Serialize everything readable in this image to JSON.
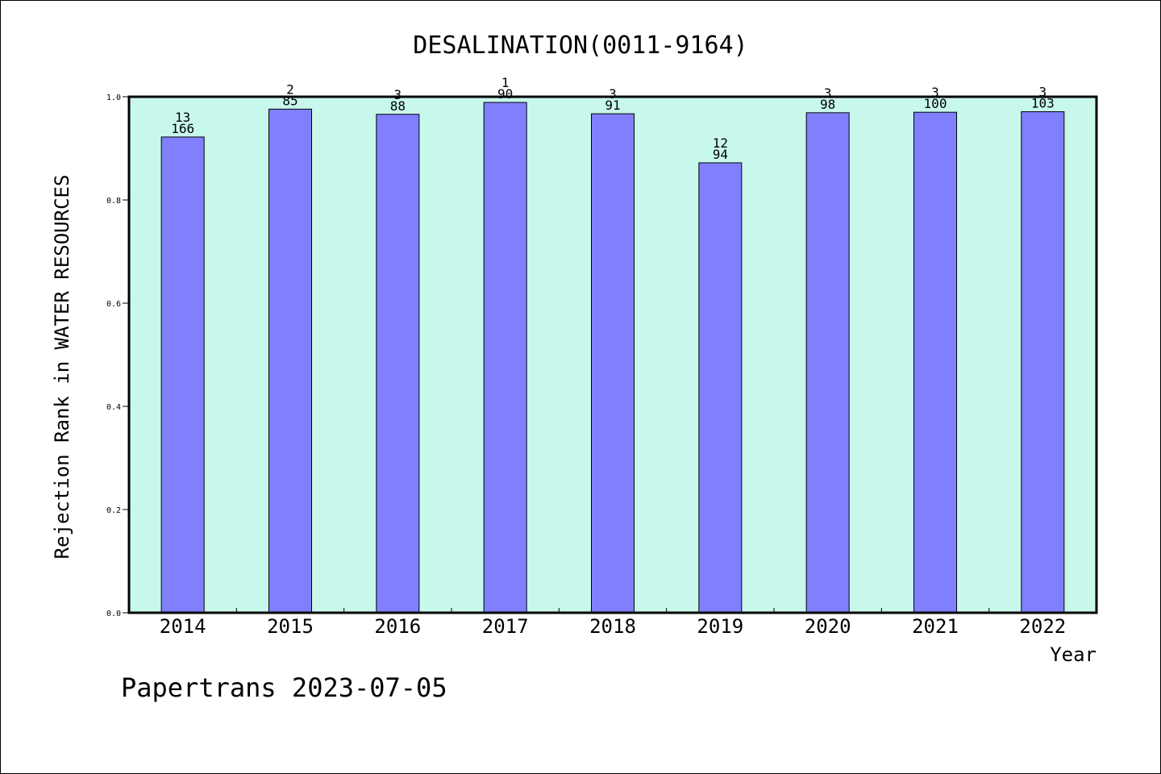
{
  "chart_data": {
    "type": "bar",
    "title": "DESALINATION(0011-9164)",
    "xlabel": "Year",
    "ylabel": "Rejection Rank in WATER RESOURCES",
    "ylim": [
      0,
      1
    ],
    "yticks": [
      "0.0",
      "0.2",
      "0.4",
      "0.6",
      "0.8",
      "1.0"
    ],
    "categories": [
      "2014",
      "2015",
      "2016",
      "2017",
      "2018",
      "2019",
      "2020",
      "2021",
      "2022"
    ],
    "values": [
      0.922,
      0.976,
      0.966,
      0.989,
      0.967,
      0.872,
      0.969,
      0.97,
      0.971
    ],
    "labels_top": [
      "13",
      "2",
      "3",
      "1",
      "3",
      "12",
      "3",
      "3",
      "3"
    ],
    "labels_bottom": [
      "166",
      "85",
      "88",
      "90",
      "91",
      "94",
      "98",
      "100",
      "103"
    ],
    "grid": false,
    "colors": {
      "plot_background": "#c8f8ec",
      "bar": "#8080ff",
      "axis": "#000000"
    }
  },
  "footer": {
    "note": "Papertrans 2023-07-05"
  }
}
